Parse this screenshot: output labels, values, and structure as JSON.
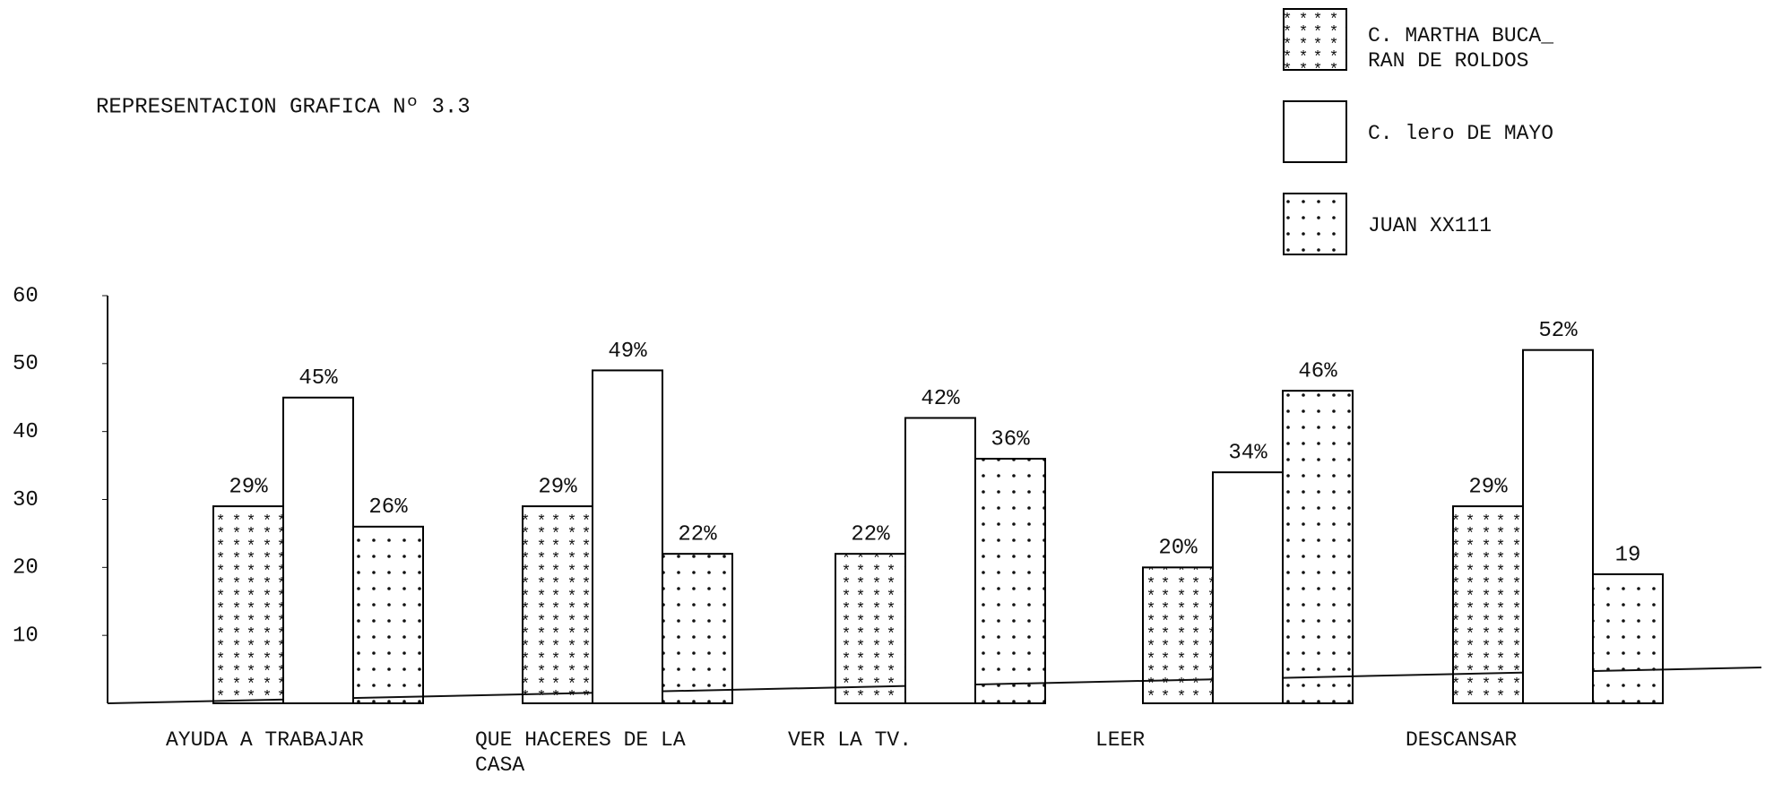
{
  "chart_data": {
    "type": "bar",
    "title": "REPRESENTACION GRAFICA Nº 3.3",
    "categories": [
      "AYUDA A TRABAJAR",
      "QUE HACERES DE LA CASA",
      "VER LA TV.",
      "LEER",
      "DESCANSAR"
    ],
    "series": [
      {
        "name": "C. MARTHA BUCA_\nRAN DE ROLDOS",
        "color": "#000000",
        "pattern": "stars",
        "values": [
          29,
          29,
          22,
          20,
          29
        ],
        "value_labels": [
          "29%",
          "29%",
          "22%",
          "20%",
          "29%"
        ]
      },
      {
        "name": "C. lero DE MAYO",
        "color": "#000000",
        "pattern": "none",
        "values": [
          45,
          49,
          42,
          34,
          52
        ],
        "value_labels": [
          "45%",
          "49%",
          "42%",
          "34%",
          "52%"
        ]
      },
      {
        "name": "JUAN XX111",
        "color": "#000000",
        "pattern": "dots",
        "values": [
          26,
          22,
          36,
          46,
          19
        ],
        "value_labels": [
          "26%",
          "22%",
          "36%",
          "46%",
          "19"
        ]
      }
    ],
    "ylim": [
      0,
      60
    ],
    "yticks": [
      10,
      20,
      30,
      40,
      50,
      60
    ],
    "grid": false,
    "legend": "top-right"
  }
}
